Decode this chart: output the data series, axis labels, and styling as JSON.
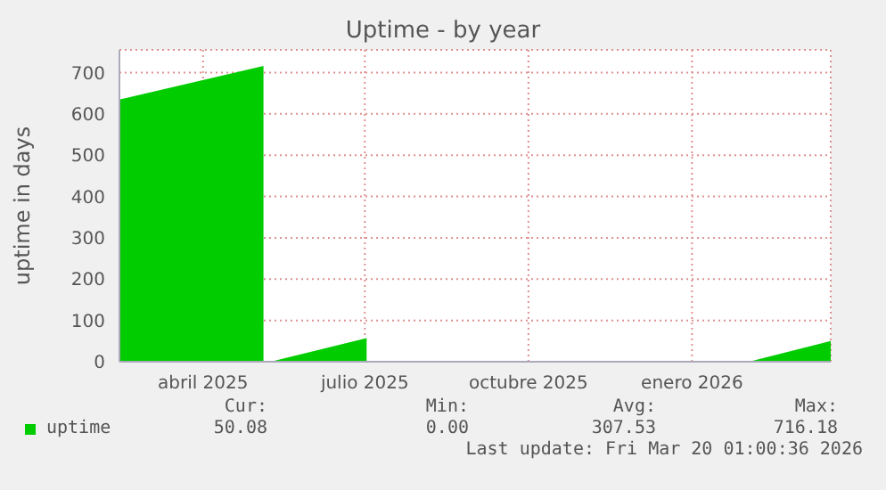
{
  "chart_data": {
    "type": "area",
    "title": "Uptime - by year",
    "ylabel": "uptime in days",
    "x": [
      "2025-02-13",
      "2025-05-05",
      "2025-05-06",
      "2025-05-09",
      "2025-07-02",
      "2025-07-03",
      "2026-02-02",
      "2026-03-20"
    ],
    "series": [
      {
        "name": "uptime",
        "color": "#00cc00",
        "values": [
          635,
          716,
          null,
          0,
          57,
          null,
          0,
          50
        ]
      }
    ],
    "xlim": [
      "2025-02-13",
      "2026-03-20"
    ],
    "xticks": [
      {
        "value": "2025-04-01",
        "label": "abril 2025"
      },
      {
        "value": "2025-07-01",
        "label": "julio 2025"
      },
      {
        "value": "2025-10-01",
        "label": "octubre 2025"
      },
      {
        "value": "2026-01-01",
        "label": "enero 2026"
      }
    ],
    "ylim": [
      0,
      755
    ],
    "yticks": [
      0,
      100,
      200,
      300,
      400,
      500,
      600,
      700
    ],
    "grid": true,
    "legend": "bottom",
    "annotations": [
      "Cur:",
      "Min:",
      "Avg:",
      "Max:",
      "50.08",
      "0.00",
      "307.53",
      "716.18",
      "Last update: Fri Mar 20 01:00:36 2026"
    ]
  }
}
